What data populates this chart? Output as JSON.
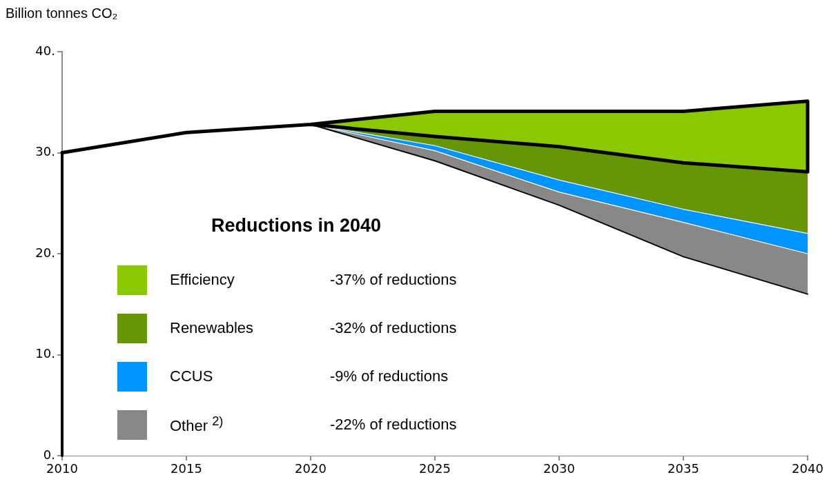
{
  "chart_data": {
    "type": "area",
    "ylabel": "Billion tonnes CO₂",
    "legend_title": "Reductions in 2040",
    "legend": "bottom left",
    "grid": false,
    "stacked": true,
    "x": [
      2010,
      2015,
      2020,
      2025,
      2030,
      2035,
      2040
    ],
    "xlim": [
      2010,
      2040
    ],
    "xticks": [
      2010,
      2015,
      2020,
      2025,
      2030,
      2035,
      2040
    ],
    "ylim": [
      0,
      40
    ],
    "yticks": [
      {
        "value": 0,
        "label": "0."
      },
      {
        "value": 10,
        "label": "10."
      },
      {
        "value": 20,
        "label": "20."
      },
      {
        "value": 30,
        "label": "30."
      },
      {
        "value": 40,
        "label": "40."
      }
    ],
    "series": [
      {
        "color": "#ffffff",
        "values": [
          30,
          32,
          32.8,
          29.2,
          24.8,
          19.7,
          16.0
        ]
      },
      {
        "name": "Other $^{2)}$",
        "color": "#888888",
        "values": [
          0,
          0,
          0,
          1.0,
          1.3,
          3.4,
          4.0
        ]
      },
      {
        "name": "CCUS",
        "color": "#0094ff",
        "values": [
          0,
          0,
          0,
          0.5,
          1.2,
          1.3,
          2.0
        ]
      },
      {
        "name": "Renewables",
        "color": "#669505",
        "values": [
          0,
          0,
          0,
          0.9,
          3.3,
          4.6,
          6.1
        ]
      },
      {
        "name": "Efficiency",
        "color": "#8cc800",
        "values": [
          0,
          0,
          0,
          2.5,
          3.5,
          5.1,
          7.0
        ]
      }
    ],
    "annotations": [
      "-37% of reductions",
      "-32% of reductions",
      "-9% of reductions",
      "-22% of reductions"
    ]
  }
}
